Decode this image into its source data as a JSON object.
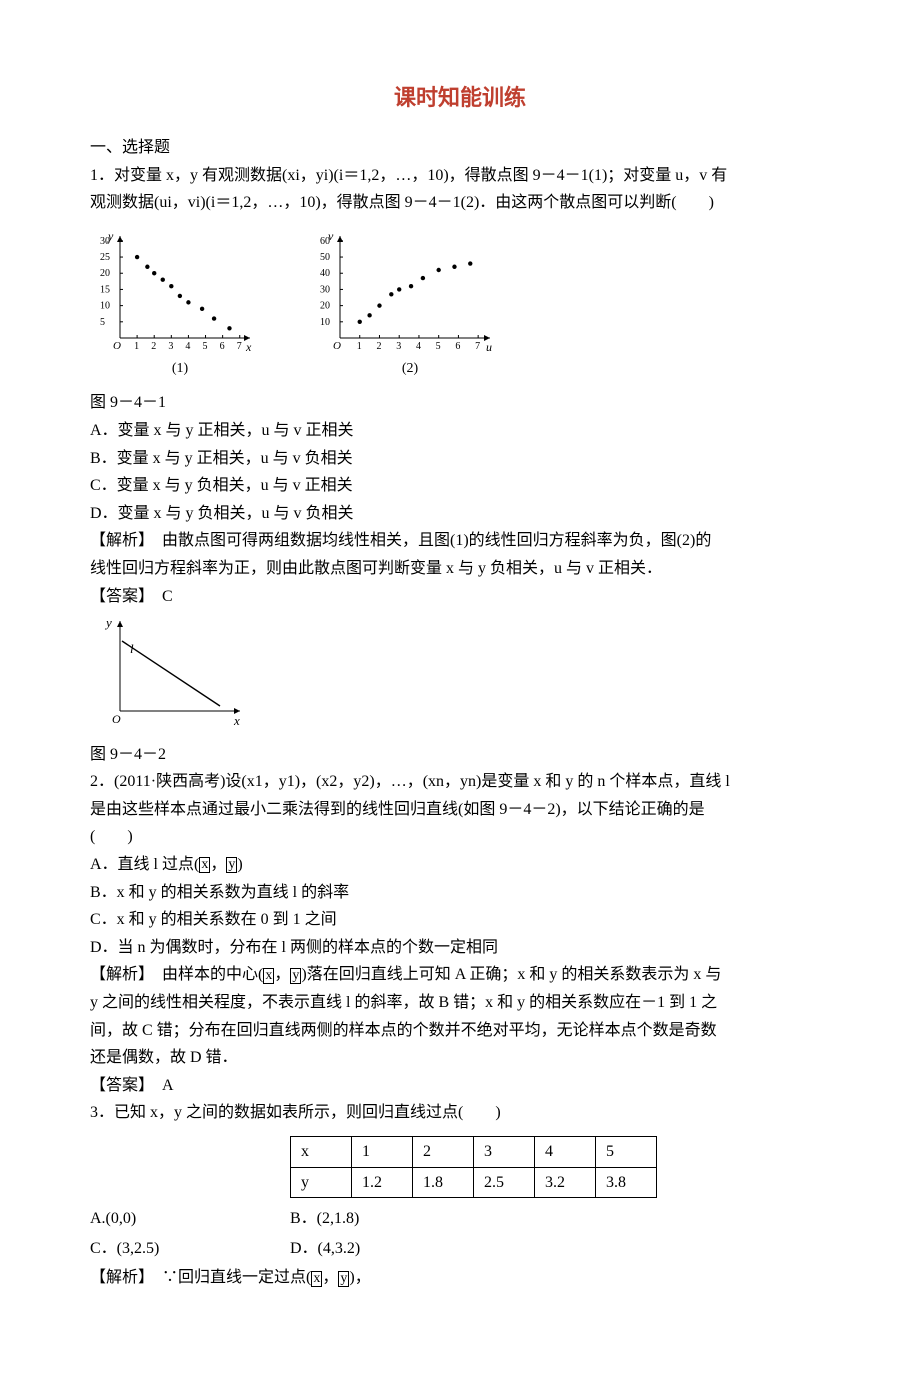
{
  "title_color": "#bf3f2f",
  "title": "课时知能训练",
  "section_heading": "一、选择题",
  "q1": {
    "stem_a": "1．对变量 x，y 有观测数据(xi，yi)(i＝1,2，…，10)，得散点图 9－4－1(1)；对变量 u，v 有",
    "stem_b": "观测数据(ui，vi)(i＝1,2，…，10)，得散点图 9－4－1(2)．由这两个散点图可以判断(　　)",
    "fig_label": "图 9－4－1",
    "optA": "A．变量 x 与 y 正相关，u 与 v 正相关",
    "optB": "B．变量 x 与 y 正相关，u 与 v 负相关",
    "optC": "C．变量 x 与 y 负相关，u 与 v 正相关",
    "optD": "D．变量 x 与 y 负相关，u 与 v 负相关",
    "expl_a": "【解析】　由散点图可得两组数据均线性相关，且图(1)的线性回归方程斜率为负，图(2)的",
    "expl_b": "线性回归方程斜率为正，则由此散点图可判断变量 x 与 y 负相关，u 与 v 正相关．",
    "ans": "【答案】　C"
  },
  "scatter1": {
    "ylabel": "y",
    "xlabel": "x",
    "yticks": [
      5,
      10,
      15,
      20,
      25,
      30
    ],
    "xticks": [
      1,
      2,
      3,
      4,
      5,
      6,
      7
    ],
    "points": [
      [
        1,
        25
      ],
      [
        1.6,
        22
      ],
      [
        2,
        20
      ],
      [
        2.5,
        18
      ],
      [
        3,
        16
      ],
      [
        3.5,
        13
      ],
      [
        4,
        11
      ],
      [
        4.8,
        9
      ],
      [
        5.5,
        6
      ],
      [
        6.4,
        3
      ]
    ],
    "caption": "(1)",
    "axis_color": "#000",
    "point_color": "#000",
    "tick_fontsize": 10
  },
  "scatter2": {
    "ylabel": "v",
    "xlabel": "u",
    "yticks": [
      10,
      20,
      30,
      40,
      50,
      60
    ],
    "xticks": [
      1,
      2,
      3,
      4,
      5,
      6,
      7
    ],
    "points": [
      [
        1,
        10
      ],
      [
        1.5,
        14
      ],
      [
        2,
        20
      ],
      [
        2.6,
        27
      ],
      [
        3,
        30
      ],
      [
        3.6,
        32
      ],
      [
        4.2,
        37
      ],
      [
        5,
        42
      ],
      [
        5.8,
        44
      ],
      [
        6.6,
        46
      ]
    ],
    "caption": "(2)",
    "axis_color": "#000",
    "point_color": "#000",
    "tick_fontsize": 10
  },
  "q2": {
    "fig_label": "图 9－4－2",
    "stem_a": "2．(2011·陕西高考)设(x1，y1)，(x2，y2)，…，(xn，yn)是变量 x 和 y 的 n 个样本点，直线 l",
    "stem_b": "是由这些样本点通过最小二乘法得到的线性回归直线(如图 9－4－2)，以下结论正确的是",
    "stem_c": "(　　)",
    "optA_pre": "A．直线 l 过点(",
    "optA_post": ")",
    "optB": "B．x 和 y 的相关系数为直线 l 的斜率",
    "optC": "C．x 和 y 的相关系数在 0 到 1 之间",
    "optD": "D．当 n 为偶数时，分布在 l 两侧的样本点的个数一定相同",
    "expl_a_pre": "【解析】　由样本的中心(",
    "expl_a_post": ")落在回归直线上可知 A 正确；x 和 y 的相关系数表示为 x 与",
    "expl_b": "y 之间的线性相关程度，不表示直线 l 的斜率，故 B 错；x 和 y 的相关系数应在－1 到 1 之",
    "expl_c": "间，故 C 错；分布在回归直线两侧的样本点的个数并不绝对平均，无论样本点个数是奇数",
    "expl_d": "还是偶数，故 D 错．",
    "ans": "【答案】　A"
  },
  "line_chart": {
    "ylabel": "y",
    "xlabel": "x",
    "line_label": "l",
    "axis_color": "#000"
  },
  "q3": {
    "stem": "3．已知 x，y 之间的数据如表所示，则回归直线过点(　　)",
    "table": {
      "header": [
        "x",
        "1",
        "2",
        "3",
        "4",
        "5"
      ],
      "row": [
        "y",
        "1.2",
        "1.8",
        "2.5",
        "3.2",
        "3.8"
      ]
    },
    "optA": "A.(0,0)",
    "optB": "B．(2,1.8)",
    "optC": "C．(3,2.5)",
    "optD": "D．(4,3.2)",
    "expl_pre": "【解析】　∵回归直线一定过点(",
    "expl_post": ")，"
  },
  "glyph": {
    "xbar": "x",
    "ybar": "y",
    "comma": "，"
  }
}
